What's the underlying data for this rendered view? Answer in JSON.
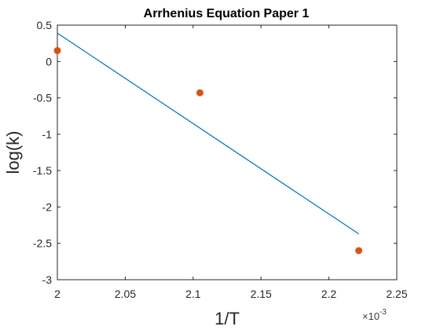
{
  "chart_data": {
    "type": "scatter",
    "title": "Arrhenius Equation Paper 1",
    "xlabel": "1/T",
    "ylabel": "log(k)",
    "x_exponent": {
      "base": "×10",
      "power": "-3"
    },
    "xlim": [
      2.0,
      2.25
    ],
    "ylim": [
      -3,
      0.5
    ],
    "x_ticks": [
      2,
      2.05,
      2.1,
      2.15,
      2.2,
      2.25
    ],
    "x_tick_labels": [
      "2",
      "2.05",
      "2.1",
      "2.15",
      "2.2",
      "2.25"
    ],
    "y_ticks": [
      0.5,
      0,
      -0.5,
      -1,
      -1.5,
      -2,
      -2.5,
      -3
    ],
    "y_tick_labels": [
      "0.5",
      "0",
      "-0.5",
      "-1",
      "-1.5",
      "-2",
      "-2.5",
      "-3"
    ],
    "grid": false,
    "series": [
      {
        "type": "line",
        "color": "#0072BD",
        "x": [
          2.0,
          2.222
        ],
        "y": [
          0.39,
          -2.37
        ]
      },
      {
        "type": "scatter",
        "color": "#D95319",
        "x": [
          2.0,
          2.105,
          2.222
        ],
        "y": [
          0.15,
          -0.43,
          -2.6
        ]
      }
    ]
  }
}
